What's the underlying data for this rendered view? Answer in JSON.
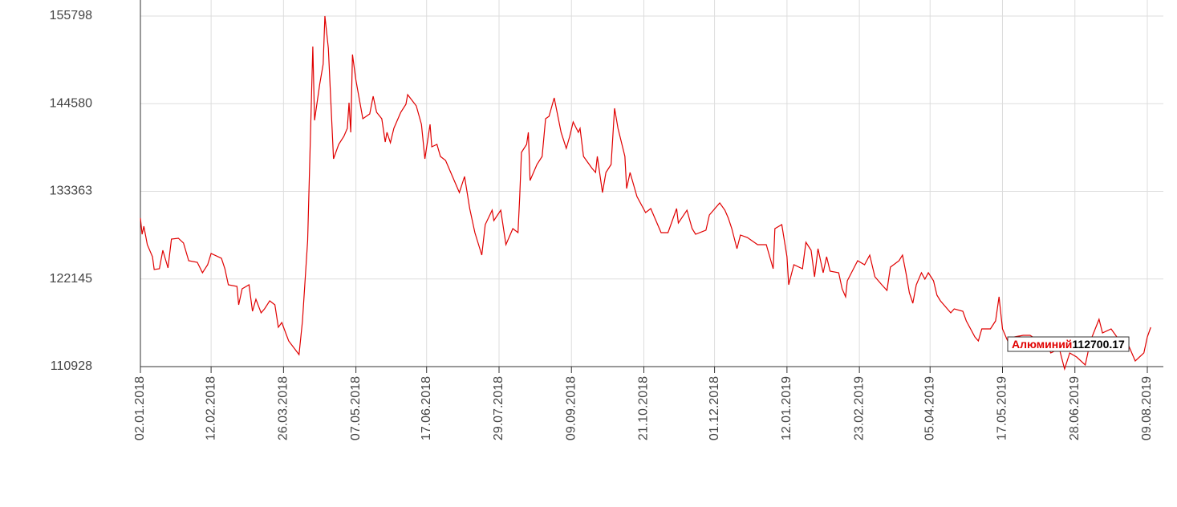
{
  "chart_data": {
    "type": "line",
    "series": [
      {
        "name": "Алюминий",
        "color": "#e00000",
        "values": [
          129924,
          127870,
          128897,
          126535,
          124995,
          123352,
          123455,
          125817,
          123558,
          127254,
          127357,
          126741,
          124482,
          124276,
          122942,
          123968,
          125406,
          124790,
          123455,
          121401,
          121196,
          118834,
          120888,
          121401,
          118013,
          119553,
          117808,
          118321,
          119348,
          118834,
          115959,
          116575,
          114214,
          112468,
          116781,
          127049,
          151897,
          142451,
          147071,
          149638,
          155798,
          151692,
          137522,
          139370,
          140397,
          141424,
          144710,
          140911,
          150871,
          147585,
          142656,
          143272,
          145531,
          143478,
          142656,
          139678,
          140911,
          139576,
          141424,
          143478,
          144504,
          145737,
          144299,
          141937,
          137522,
          141937,
          139062,
          139370,
          137830,
          137317,
          134236,
          133210,
          135263,
          131156,
          128076,
          125201,
          129102,
          130951,
          129616,
          130951,
          126535,
          128589,
          128076,
          132696,
          138344,
          139370,
          140911,
          134750,
          136803,
          137830,
          142656,
          142964,
          145326,
          140911,
          138857,
          140397,
          142245,
          140911,
          141424,
          137830,
          136290,
          135777,
          137830,
          133210,
          135777,
          136803,
          143991,
          141424,
          137830,
          133723,
          135777,
          132696,
          130643,
          131156,
          128076,
          128076,
          131156,
          129308,
          130951,
          128589,
          127870,
          128384,
          130335,
          131875,
          130951,
          129924,
          128589,
          126022,
          127768,
          127459,
          126535,
          126535,
          124995,
          123455,
          128589,
          129102,
          124995,
          121401,
          123968,
          123455,
          126843,
          125817,
          122428,
          126022,
          122942,
          124995,
          123147,
          122942,
          120888,
          119861,
          121915,
          124482,
          123968,
          125201,
          122428,
          121401,
          120683,
          123660,
          124482,
          125201,
          122942,
          120375,
          119040,
          121401,
          122942,
          122120,
          122942,
          121915,
          120067,
          119348,
          117808,
          118321,
          118013,
          116781,
          114727,
          114214,
          115754,
          115754,
          116781,
          119861,
          115754,
          114214,
          114727,
          114933,
          114933,
          114214,
          113700,
          112674,
          113187,
          110620,
          112674,
          112160,
          111133,
          114214,
          116986,
          115241,
          115754,
          114214,
          114214,
          111647,
          112674,
          114727,
          115959
        ]
      }
    ],
    "x": [
      "2018-01-02",
      "2018-01-03",
      "2018-01-04",
      "2018-01-06",
      "2018-01-09",
      "2018-01-10",
      "2018-01-13",
      "2018-01-15",
      "2018-01-18",
      "2018-01-20",
      "2018-01-24",
      "2018-01-27",
      "2018-01-30",
      "2018-02-04",
      "2018-02-07",
      "2018-02-10",
      "2018-02-12",
      "2018-02-18",
      "2018-02-20",
      "2018-02-22",
      "2018-02-27",
      "2018-02-28",
      "2018-03-02",
      "2018-03-06",
      "2018-03-08",
      "2018-03-10",
      "2018-03-13",
      "2018-03-15",
      "2018-03-18",
      "2018-03-21",
      "2018-03-23",
      "2018-03-25",
      "2018-03-29",
      "2018-04-04",
      "2018-04-06",
      "2018-04-09",
      "2018-04-12",
      "2018-04-13",
      "2018-04-16",
      "2018-04-18",
      "2018-04-19",
      "2018-04-21",
      "2018-04-24",
      "2018-04-27",
      "2018-04-30",
      "2018-05-02",
      "2018-05-03",
      "2018-05-04",
      "2018-05-05",
      "2018-05-07",
      "2018-05-11",
      "2018-05-15",
      "2018-05-17",
      "2018-05-19",
      "2018-05-22",
      "2018-05-24",
      "2018-05-25",
      "2018-05-27",
      "2018-05-29",
      "2018-06-02",
      "2018-06-05",
      "2018-06-06",
      "2018-06-11",
      "2018-06-14",
      "2018-06-16",
      "2018-06-19",
      "2018-06-20",
      "2018-06-23",
      "2018-06-25",
      "2018-06-28",
      "2018-07-04",
      "2018-07-06",
      "2018-07-09",
      "2018-07-12",
      "2018-07-15",
      "2018-07-19",
      "2018-07-21",
      "2018-07-25",
      "2018-07-26",
      "2018-07-30",
      "2018-08-02",
      "2018-08-06",
      "2018-08-09",
      "2018-08-10",
      "2018-08-11",
      "2018-08-14",
      "2018-08-15",
      "2018-08-16",
      "2018-08-20",
      "2018-08-23",
      "2018-08-25",
      "2018-08-27",
      "2018-08-30",
      "2018-09-03",
      "2018-09-06",
      "2018-09-08",
      "2018-09-10",
      "2018-09-13",
      "2018-09-14",
      "2018-09-16",
      "2018-09-21",
      "2018-09-23",
      "2018-09-24",
      "2018-09-27",
      "2018-09-29",
      "2018-10-02",
      "2018-10-04",
      "2018-10-06",
      "2018-10-10",
      "2018-10-11",
      "2018-10-13",
      "2018-10-17",
      "2018-10-22",
      "2018-10-25",
      "2018-10-31",
      "2018-11-04",
      "2018-11-09",
      "2018-11-10",
      "2018-11-15",
      "2018-11-18",
      "2018-11-20",
      "2018-11-26",
      "2018-11-28",
      "2018-12-04",
      "2018-12-07",
      "2018-12-09",
      "2018-12-11",
      "2018-12-14",
      "2018-12-16",
      "2018-12-20",
      "2018-12-26",
      "2018-12-31",
      "2019-01-02",
      "2019-01-04",
      "2019-01-05",
      "2019-01-09",
      "2019-01-12",
      "2019-01-13",
      "2019-01-16",
      "2019-01-21",
      "2019-01-23",
      "2019-01-26",
      "2019-01-28",
      "2019-01-30",
      "2019-02-02",
      "2019-02-04",
      "2019-02-06",
      "2019-02-11",
      "2019-02-13",
      "2019-02-15",
      "2019-02-16",
      "2019-02-22",
      "2019-02-26",
      "2019-03-01",
      "2019-03-04",
      "2019-03-08",
      "2019-03-11",
      "2019-03-13",
      "2019-03-18",
      "2019-03-20",
      "2019-03-22",
      "2019-03-24",
      "2019-03-26",
      "2019-03-28",
      "2019-03-31",
      "2019-04-02",
      "2019-04-04",
      "2019-04-07",
      "2019-04-09",
      "2019-04-11",
      "2019-04-17",
      "2019-04-19",
      "2019-04-24",
      "2019-04-26",
      "2019-05-01",
      "2019-05-03",
      "2019-05-05",
      "2019-05-10",
      "2019-05-13",
      "2019-05-15",
      "2019-05-17",
      "2019-05-20",
      "2019-05-24",
      "2019-05-29",
      "2019-06-02",
      "2019-06-07",
      "2019-06-12",
      "2019-06-14",
      "2019-06-19",
      "2019-06-22",
      "2019-06-25",
      "2019-06-29",
      "2019-07-04",
      "2019-07-07",
      "2019-07-12",
      "2019-07-14",
      "2019-07-19",
      "2019-07-24",
      "2019-07-28",
      "2019-08-02",
      "2019-08-07",
      "2019-08-09",
      "2019-08-11"
    ],
    "xlim": [
      "2018-01-02",
      "2019-08-09"
    ],
    "xticks": [
      {
        "value": "2018-01-02",
        "label": "02.01.2018"
      },
      {
        "value": "2018-02-12",
        "label": "12.02.2018"
      },
      {
        "value": "2018-03-26",
        "label": "26.03.2018"
      },
      {
        "value": "2018-05-07",
        "label": "07.05.2018"
      },
      {
        "value": "2018-06-17",
        "label": "17.06.2018"
      },
      {
        "value": "2018-07-29",
        "label": "29.07.2018"
      },
      {
        "value": "2018-09-09",
        "label": "09.09.2018"
      },
      {
        "value": "2018-10-21",
        "label": "21.10.2018"
      },
      {
        "value": "2018-12-01",
        "label": "01.12.2018"
      },
      {
        "value": "2019-01-12",
        "label": "12.01.2019"
      },
      {
        "value": "2019-02-23",
        "label": "23.02.2019"
      },
      {
        "value": "2019-04-05",
        "label": "05.04.2019"
      },
      {
        "value": "2019-05-17",
        "label": "17.05.2019"
      },
      {
        "value": "2019-06-28",
        "label": "28.06.2019"
      },
      {
        "value": "2019-08-09",
        "label": "09.08.2019"
      }
    ],
    "ylim": [
      110928,
      155798
    ],
    "yticks": [
      110928,
      122145,
      133363,
      144580,
      155798
    ],
    "grid": true,
    "tooltip_value": 112700.17
  }
}
